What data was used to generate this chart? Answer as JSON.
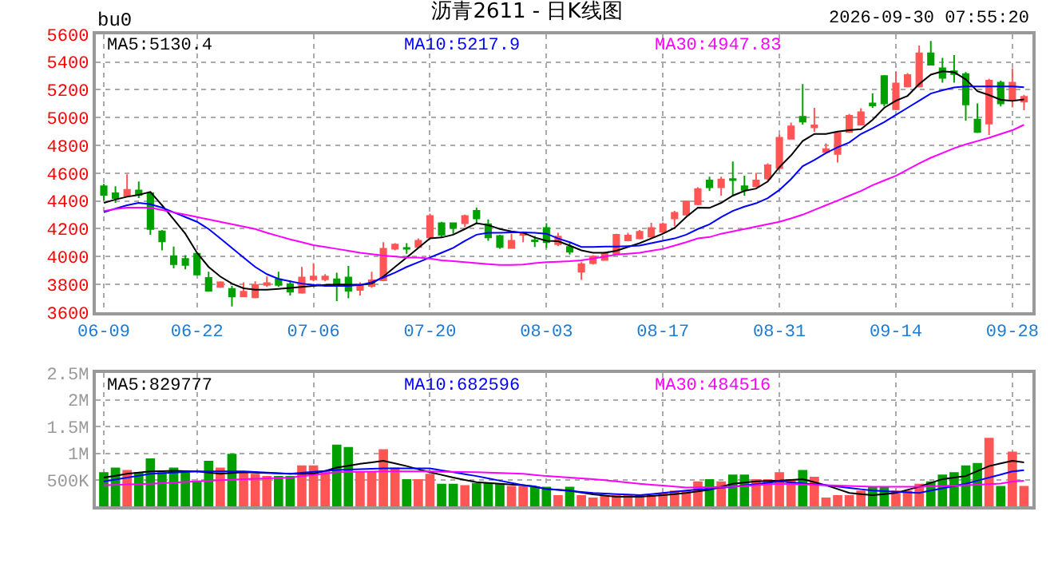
{
  "chart_data": [
    {
      "type": "candlestick",
      "title": "沥青2611 - 日K线图",
      "annotations": [
        "bu0",
        "2026-09-30 07:55:20"
      ],
      "grid": true,
      "marker": "none",
      "categories": [
        "06-09",
        null,
        null,
        null,
        null,
        null,
        null,
        null,
        "06-22",
        null,
        null,
        null,
        null,
        null,
        null,
        null,
        null,
        null,
        "07-06",
        null,
        null,
        null,
        null,
        null,
        null,
        null,
        null,
        null,
        "07-20",
        null,
        null,
        null,
        null,
        null,
        null,
        null,
        null,
        null,
        "08-03",
        null,
        null,
        null,
        null,
        null,
        null,
        null,
        null,
        null,
        "08-17",
        null,
        null,
        null,
        null,
        null,
        null,
        null,
        null,
        null,
        "08-31",
        null,
        null,
        null,
        null,
        null,
        null,
        null,
        null,
        null,
        "09-14",
        null,
        null,
        null,
        null,
        null,
        null,
        null,
        null,
        null,
        "09-28",
        null
      ],
      "ylim": [
        3600,
        5600
      ],
      "yticks": [
        3600,
        3800,
        4000,
        4200,
        4400,
        4600,
        4800,
        5000,
        5200,
        5400,
        5600
      ],
      "ohlc": [
        [
          4506,
          4523,
          4403,
          4444
        ],
        [
          4455,
          4506,
          4386,
          4420
        ],
        [
          4438,
          4591,
          4427,
          4479
        ],
        [
          4475,
          4540,
          4420,
          4444
        ],
        [
          4455,
          4455,
          4157,
          4198
        ],
        [
          4181,
          4191,
          4044,
          4109
        ],
        [
          4003,
          4072,
          3915,
          3945
        ],
        [
          3983,
          4010,
          3908,
          3939
        ],
        [
          4020,
          4027,
          3863,
          3870
        ],
        [
          3846,
          3891,
          3747,
          3754
        ],
        [
          3781,
          3822,
          3774,
          3815
        ],
        [
          3767,
          3788,
          3641,
          3713
        ],
        [
          3713,
          3815,
          3706,
          3747
        ],
        [
          3706,
          3822,
          3699,
          3795
        ],
        [
          3795,
          3856,
          3781,
          3808
        ],
        [
          3836,
          3891,
          3781,
          3795
        ],
        [
          3802,
          3829,
          3720,
          3747
        ],
        [
          3740,
          3925,
          3733,
          3849
        ],
        [
          3836,
          3952,
          3822,
          3856
        ],
        [
          3836,
          3873,
          3822,
          3856
        ],
        [
          3836,
          3884,
          3679,
          3802
        ],
        [
          3849,
          3932,
          3699,
          3754
        ],
        [
          3760,
          3815,
          3720,
          3788
        ],
        [
          3788,
          3891,
          3774,
          3829
        ],
        [
          3829,
          4103,
          3822,
          4055
        ],
        [
          4055,
          4096,
          4044,
          4086
        ],
        [
          4062,
          4096,
          4020,
          4055
        ],
        [
          4069,
          4130,
          4062,
          4113
        ],
        [
          4137,
          4308,
          4130,
          4291
        ],
        [
          4239,
          4250,
          4144,
          4157
        ],
        [
          4239,
          4246,
          4164,
          4205
        ],
        [
          4239,
          4301,
          4212,
          4291
        ],
        [
          4328,
          4352,
          4232,
          4274
        ],
        [
          4232,
          4267,
          4113,
          4137
        ],
        [
          4147,
          4157,
          4055,
          4069
        ],
        [
          4062,
          4164,
          4055,
          4113
        ],
        [
          4157,
          4181,
          4103,
          4171
        ],
        [
          4116,
          4147,
          4069,
          4110
        ],
        [
          4205,
          4239,
          4062,
          4103
        ],
        [
          4089,
          4171,
          4075,
          4144
        ],
        [
          4069,
          4103,
          4014,
          4034
        ],
        [
          3891,
          3959,
          3832,
          3945
        ],
        [
          3952,
          4010,
          3942,
          4000
        ],
        [
          3976,
          4034,
          3973,
          4020
        ],
        [
          4020,
          4164,
          4014,
          4157
        ],
        [
          4116,
          4171,
          4109,
          4150
        ],
        [
          4130,
          4191,
          4123,
          4178
        ],
        [
          4144,
          4243,
          4130,
          4205
        ],
        [
          4178,
          4246,
          4164,
          4232
        ],
        [
          4274,
          4328,
          4219,
          4314
        ],
        [
          4301,
          4403,
          4294,
          4396
        ],
        [
          4376,
          4499,
          4369,
          4485
        ],
        [
          4547,
          4574,
          4472,
          4499
        ],
        [
          4499,
          4574,
          4438,
          4554
        ],
        [
          4557,
          4684,
          4440,
          4550
        ],
        [
          4506,
          4581,
          4438,
          4479
        ],
        [
          4506,
          4602,
          4499,
          4547
        ],
        [
          4561,
          4670,
          4547,
          4656
        ],
        [
          4636,
          4876,
          4626,
          4855
        ],
        [
          4848,
          4964,
          4841,
          4937
        ],
        [
          5005,
          5241,
          4950,
          4971
        ],
        [
          4930,
          5070,
          4896,
          4944
        ],
        [
          4752,
          4814,
          4745,
          4773
        ],
        [
          4738,
          4896,
          4677,
          4889
        ],
        [
          4896,
          5026,
          4889,
          5012
        ],
        [
          4950,
          5067,
          4944,
          5039
        ],
        [
          5101,
          5173,
          5070,
          5087
        ],
        [
          5299,
          5306,
          5080,
          5101
        ],
        [
          5060,
          5333,
          5053,
          5245
        ],
        [
          5224,
          5320,
          5217,
          5306
        ],
        [
          5224,
          5518,
          5217,
          5463
        ],
        [
          5463,
          5552,
          5374,
          5381
        ],
        [
          5354,
          5429,
          5251,
          5285
        ],
        [
          5333,
          5449,
          5251,
          5313
        ],
        [
          5313,
          5327,
          4978,
          5094
        ],
        [
          4985,
          5101,
          4889,
          4896
        ],
        [
          4957,
          5279,
          4875,
          5265
        ],
        [
          5251,
          5265,
          5080,
          5101
        ],
        [
          5128,
          5354,
          5073,
          5251
        ],
        [
          5115,
          5163,
          5053,
          5149
        ]
      ],
      "series": [
        {
          "name": "MA5:5130.4",
          "type": "line",
          "color": "#000000",
          "values": [
            4386,
            4410,
            4430,
            4444,
            4465,
            4369,
            4267,
            4164,
            4027,
            3925,
            3856,
            3805,
            3771,
            3761,
            3761,
            3767,
            3774,
            3781,
            3788,
            3795,
            3798,
            3798,
            3795,
            3805,
            3856,
            3925,
            3993,
            4062,
            4130,
            4137,
            4157,
            4198,
            4239,
            4226,
            4198,
            4181,
            4171,
            4137,
            4113,
            4110,
            4079,
            4044,
            4027,
            4027,
            4041,
            4069,
            4096,
            4130,
            4164,
            4205,
            4284,
            4352,
            4350,
            4386,
            4438,
            4472,
            4489,
            4540,
            4643,
            4728,
            4831,
            4882,
            4882,
            4899,
            4909,
            4916,
            4984,
            5070,
            5121,
            5156,
            5241,
            5309,
            5333,
            5326,
            5275,
            5190,
            5162,
            5128,
            5121,
            5130.4
          ]
        },
        {
          "name": "MA10:5217.9",
          "type": "line",
          "color": "#0000ff",
          "values": [
            4318,
            4345,
            4369,
            4386,
            4376,
            4352,
            4318,
            4284,
            4250,
            4198,
            4130,
            4062,
            3993,
            3925,
            3873,
            3839,
            3822,
            3805,
            3795,
            3788,
            3788,
            3788,
            3795,
            3815,
            3849,
            3884,
            3925,
            3959,
            3993,
            4027,
            4062,
            4113,
            4157,
            4171,
            4171,
            4174,
            4174,
            4171,
            4164,
            4130,
            4103,
            4069,
            4069,
            4072,
            4072,
            4075,
            4079,
            4096,
            4113,
            4130,
            4157,
            4198,
            4232,
            4284,
            4328,
            4359,
            4383,
            4420,
            4479,
            4557,
            4650,
            4694,
            4745,
            4786,
            4821,
            4882,
            4923,
            4968,
            5019,
            5070,
            5121,
            5173,
            5197,
            5217,
            5224,
            5224,
            5224,
            5224,
            5224,
            5217.9
          ]
        },
        {
          "name": "MA30:4947.83",
          "type": "line",
          "color": "#ff00ff",
          "values": [
            4328,
            4342,
            4352,
            4352,
            4352,
            4335,
            4318,
            4301,
            4284,
            4267,
            4250,
            4232,
            4215,
            4198,
            4171,
            4147,
            4123,
            4103,
            4082,
            4069,
            4055,
            4041,
            4027,
            4017,
            4007,
            4000,
            3993,
            3993,
            3986,
            3973,
            3966,
            3959,
            3952,
            3945,
            3939,
            3939,
            3942,
            3952,
            3959,
            3962,
            3966,
            3973,
            3986,
            4000,
            4014,
            4020,
            4027,
            4041,
            4055,
            4079,
            4103,
            4130,
            4140,
            4164,
            4181,
            4198,
            4215,
            4232,
            4250,
            4274,
            4301,
            4335,
            4369,
            4403,
            4438,
            4472,
            4513,
            4547,
            4581,
            4626,
            4670,
            4711,
            4745,
            4779,
            4807,
            4831,
            4855,
            4882,
            4909,
            4947.83
          ]
        }
      ]
    },
    {
      "type": "bar",
      "grid": true,
      "tick_labels": "y",
      "marker": "none",
      "categories": [
        null,
        null,
        null,
        null,
        null,
        null,
        null,
        null,
        null,
        null,
        null,
        null,
        null,
        null,
        null,
        null,
        null,
        null,
        null,
        null,
        null,
        null,
        null,
        null,
        null,
        null,
        null,
        null,
        null,
        null,
        null,
        null,
        null,
        null,
        null,
        null,
        null,
        null,
        null,
        null,
        null,
        null,
        null,
        null,
        null,
        null,
        null,
        null,
        null,
        null,
        null,
        null,
        null,
        null,
        null,
        null,
        null,
        null,
        null,
        null,
        null,
        null,
        null,
        null,
        null,
        null,
        null,
        null,
        null,
        null,
        null,
        null,
        null,
        null,
        null,
        null,
        null,
        null,
        null,
        null
      ],
      "ylim": [
        0,
        2500000
      ],
      "yticks": [
        {
          "value": 500000,
          "label": "500K"
        },
        {
          "value": 1000000,
          "label": "1M"
        },
        {
          "value": 1500000,
          "label": "1.5M"
        },
        {
          "value": 2000000,
          "label": "2M"
        },
        {
          "value": 2500000,
          "label": "2.5M"
        }
      ],
      "series": [
        {
          "type": "bar",
          "colors": [
            "#00a000",
            "#00a000",
            "#ff5555",
            "#00a000",
            "#00a000",
            "#00a000",
            "#00a000",
            "#00a000",
            "#00a000",
            "#00a000",
            "#ff5555",
            "#00a000",
            "#ff5555",
            "#ff5555",
            "#ff5555",
            "#00a000",
            "#00a000",
            "#ff5555",
            "#ff5555",
            "#ff5555",
            "#00a000",
            "#00a000",
            "#ff5555",
            "#ff5555",
            "#ff5555",
            "#ff5555",
            "#00a000",
            "#ff5555",
            "#ff5555",
            "#00a000",
            "#00a000",
            "#ff5555",
            "#00a000",
            "#00a000",
            "#00a000",
            "#ff5555",
            "#ff5555",
            "#00a000",
            "#00a000",
            "#ff5555",
            "#00a000",
            "#ff5555",
            "#ff5555",
            "#ff5555",
            "#ff5555",
            "#ff5555",
            "#ff5555",
            "#ff5555",
            "#ff5555",
            "#ff5555",
            "#ff5555",
            "#ff5555",
            "#00a000",
            "#ff5555",
            "#00a000",
            "#00a000",
            "#ff5555",
            "#ff5555",
            "#ff5555",
            "#ff5555",
            "#00a000",
            "#ff5555",
            "#ff5555",
            "#ff5555",
            "#ff5555",
            "#ff5555",
            "#00a000",
            "#00a000",
            "#ff5555",
            "#ff5555",
            "#ff5555",
            "#00a000",
            "#00a000",
            "#00a000",
            "#00a000",
            "#00a000",
            "#ff5555",
            "#00a000",
            "#ff5555",
            "#ff5555"
          ],
          "values": [
            645000,
            731000,
            688000,
            645000,
            903000,
            645000,
            731000,
            645000,
            473000,
            860000,
            731000,
            989000,
            645000,
            616000,
            573000,
            573000,
            573000,
            774000,
            774000,
            659000,
            1161000,
            1118000,
            659000,
            659000,
            1075000,
            731000,
            516000,
            516000,
            616000,
            430000,
            430000,
            401000,
            444000,
            444000,
            430000,
            387000,
            387000,
            373000,
            373000,
            215000,
            373000,
            215000,
            172000,
            215000,
            215000,
            215000,
            215000,
            215000,
            258000,
            301000,
            301000,
            473000,
            516000,
            473000,
            602000,
            602000,
            516000,
            516000,
            645000,
            516000,
            688000,
            559000,
            172000,
            215000,
            215000,
            301000,
            373000,
            373000,
            301000,
            301000,
            430000,
            473000,
            602000,
            645000,
            774000,
            817000,
            1290000,
            387000,
            1032000,
            387000
          ]
        },
        {
          "name": "MA5:829777",
          "type": "line",
          "color": "#000000",
          "values": [
            545000,
            580000,
            616000,
            640000,
            659000,
            666000,
            673000,
            666000,
            659000,
            640000,
            616000,
            630000,
            645000,
            638000,
            630000,
            623000,
            616000,
            616000,
            616000,
            670000,
            731000,
            766000,
            802000,
            830000,
            860000,
            810000,
            760000,
            700000,
            645000,
            595000,
            545000,
            500000,
            459000,
            445000,
            430000,
            415000,
            401000,
            373000,
            330000,
            315000,
            301000,
            265000,
            229000,
            208000,
            186000,
            186000,
            186000,
            200000,
            215000,
            236000,
            258000,
            286000,
            315000,
            372000,
            430000,
            451000,
            473000,
            480000,
            487000,
            500000,
            516000,
            458000,
            401000,
            330000,
            258000,
            236000,
            215000,
            236000,
            258000,
            315000,
            373000,
            445000,
            516000,
            545000,
            573000,
            666000,
            760000,
            810000,
            860000,
            829777
          ]
        },
        {
          "name": "MA10:682596",
          "type": "line",
          "color": "#0000ff",
          "values": [
            473000,
            509000,
            545000,
            580000,
            616000,
            627000,
            638000,
            648000,
            659000,
            659000,
            659000,
            659000,
            659000,
            648000,
            638000,
            627000,
            616000,
            634000,
            652000,
            670000,
            688000,
            695000,
            702000,
            710000,
            717000,
            717000,
            717000,
            717000,
            717000,
            681000,
            645000,
            609000,
            573000,
            530000,
            487000,
            444000,
            401000,
            380000,
            330000,
            312000,
            294000,
            276000,
            258000,
            247000,
            236000,
            226000,
            215000,
            236000,
            258000,
            280000,
            301000,
            319000,
            337000,
            355000,
            373000,
            398000,
            423000,
            448000,
            473000,
            455000,
            437000,
            419000,
            401000,
            376000,
            351000,
            326000,
            301000,
            290000,
            280000,
            269000,
            258000,
            301000,
            344000,
            387000,
            430000,
            487000,
            545000,
            602000,
            659000,
            682596
          ]
        },
        {
          "name": "MA30:484516",
          "type": "line",
          "color": "#ff00ff",
          "values": [
            401000,
            408000,
            416000,
            423000,
            430000,
            441000,
            452000,
            462000,
            473000,
            484000,
            495000,
            505000,
            516000,
            523000,
            530000,
            538000,
            545000,
            570000,
            595000,
            620000,
            645000,
            648000,
            652000,
            656000,
            659000,
            659000,
            659000,
            659000,
            659000,
            655000,
            652000,
            648000,
            645000,
            638000,
            630000,
            623000,
            616000,
            595000,
            573000,
            559000,
            545000,
            530000,
            516000,
            495000,
            473000,
            452000,
            430000,
            412000,
            394000,
            376000,
            358000,
            362000,
            366000,
            369000,
            373000,
            387000,
            401000,
            416000,
            430000,
            423000,
            416000,
            408000,
            401000,
            394000,
            387000,
            380000,
            373000,
            373000,
            373000,
            373000,
            373000,
            380000,
            387000,
            394000,
            401000,
            412000,
            423000,
            434000,
            470000,
            484516
          ]
        }
      ]
    }
  ]
}
